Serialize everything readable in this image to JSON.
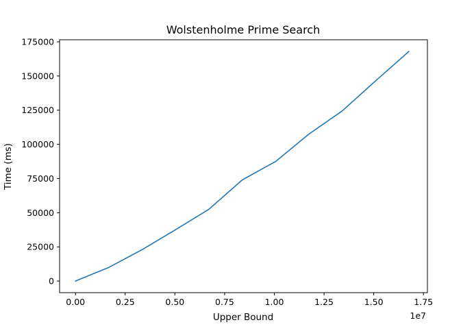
{
  "chart_data": {
    "type": "line",
    "title": "Wolstenholme Prime Search",
    "xlabel": "Upper Bound",
    "ylabel": "Time (ms)",
    "x_offset_label": "1e7",
    "xlim": [
      -0.08,
      1.77
    ],
    "ylim": [
      -8500,
      176500
    ],
    "xticks": [
      0.0,
      0.25,
      0.5,
      0.75,
      1.0,
      1.25,
      1.5,
      1.75
    ],
    "xtick_labels": [
      "0.00",
      "0.25",
      "0.50",
      "0.75",
      "1.00",
      "1.25",
      "1.50",
      "1.75"
    ],
    "yticks": [
      0,
      25000,
      50000,
      75000,
      100000,
      125000,
      150000,
      175000
    ],
    "ytick_labels": [
      "0",
      "25000",
      "50000",
      "75000",
      "100000",
      "125000",
      "150000",
      "175000"
    ],
    "grid": false,
    "series": [
      {
        "color": "#1f77b4",
        "x": [
          0.0,
          0.168,
          0.335,
          0.503,
          0.671,
          0.839,
          1.007,
          1.174,
          1.342,
          1.51,
          1.677
        ],
        "y": [
          0,
          10000,
          23000,
          37500,
          52500,
          74000,
          87500,
          107500,
          124500,
          146500,
          168000
        ]
      }
    ]
  }
}
